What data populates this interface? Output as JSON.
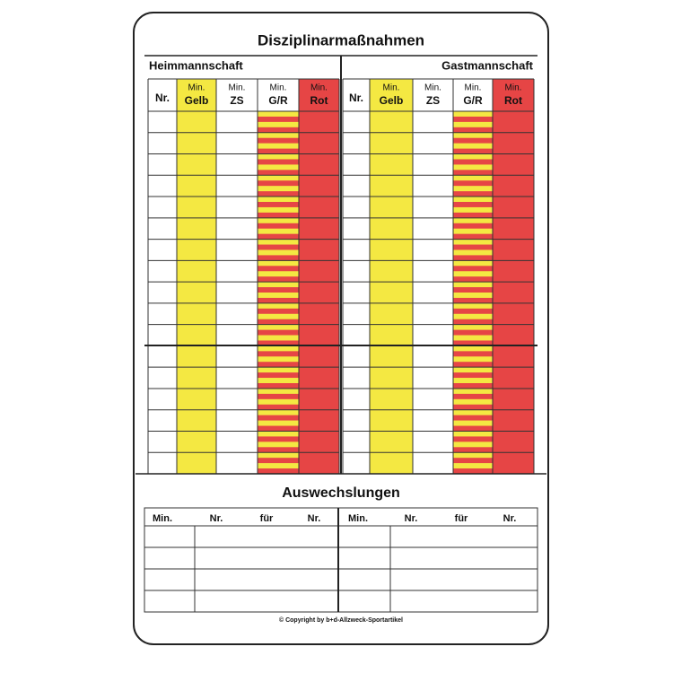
{
  "header": {
    "title": "Disziplinarmaßnahmen",
    "home_team": "Heimmannschaft",
    "away_team": "Gastmannschaft"
  },
  "discipline_table": {
    "columns": [
      {
        "label": "Nr."
      },
      {
        "min": "Min.",
        "label": "Gelb"
      },
      {
        "min": "Min.",
        "label": "ZS"
      },
      {
        "min": "Min.",
        "label": "G/R"
      },
      {
        "min": "Min.",
        "label": "Rot"
      }
    ]
  },
  "substitutions": {
    "title": "Auswechslungen",
    "columns": [
      "Min.",
      "Nr.",
      "für",
      "Nr."
    ]
  },
  "footer": {
    "copyright": "© Copyright by b+d-Allzweck-Sportartikel"
  }
}
